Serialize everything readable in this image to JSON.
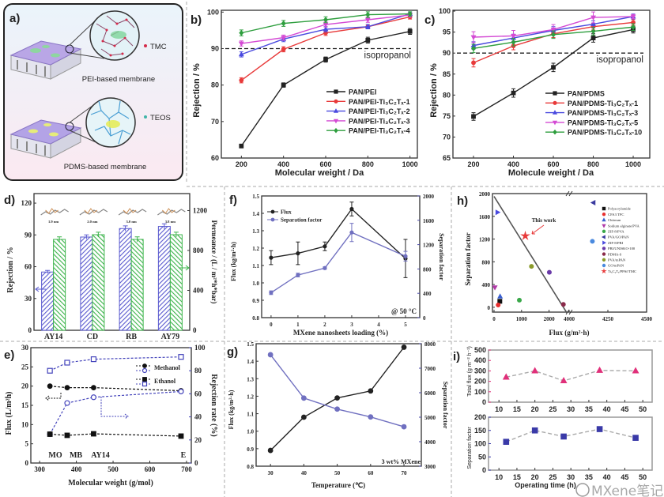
{
  "panel_a": {
    "panel_label": "a)",
    "tmc_label": "TMC",
    "pei_caption": "PEI-based membrane",
    "teos_label": "TEOS",
    "pdms_caption": "PDMS-based membrane",
    "colors": {
      "tmc": "#d42a4a",
      "teos": "#3fb5a8",
      "membrane": "#b9a6e6"
    }
  },
  "watermark": "MXene笔记",
  "chart_data": [
    {
      "panel_label": "b)",
      "type": "line",
      "xlabel": "Molecular  weight / Da",
      "ylabel": "Rejection / %",
      "xlim": [
        105,
        1035
      ],
      "ylim": [
        60,
        100.5
      ],
      "xticks": [
        "200",
        "400",
        "600",
        "800",
        "1000"
      ],
      "yticks": [
        "60",
        "70",
        "80",
        "90",
        "100"
      ],
      "reference_line": {
        "y": 90,
        "label": "isopropanol",
        "style": "dashed"
      },
      "legend_position": "bottom-right",
      "x": [
        200,
        400,
        600,
        800,
        1000
      ],
      "series": [
        {
          "name": "PAN/PEI",
          "color": "#222222",
          "marker": "square",
          "values": [
            63.3,
            80.0,
            87.0,
            92.3,
            94.7
          ],
          "error": [
            0.5,
            0.6,
            0.7,
            0.8,
            0.8
          ]
        },
        {
          "name": "PAN/PEI-Ti₃C₂Tₓ-1",
          "color": "#e83a3a",
          "marker": "circle",
          "values": [
            81.3,
            89.8,
            94.3,
            96.0,
            98.7
          ],
          "error": [
            0.7,
            0.7,
            0.7,
            0.6,
            0.6
          ]
        },
        {
          "name": "PAN/PEI-Ti₃C₂Tₓ-2",
          "color": "#4a4adf",
          "marker": "triangle-up",
          "values": [
            88.4,
            92.6,
            95.3,
            96.0,
            99.5
          ],
          "error": [
            0.7,
            0.7,
            0.7,
            0.6,
            0.5
          ]
        },
        {
          "name": "PAN/PEI-Ti₃C₂Tₓ-3",
          "color": "#d44ad4",
          "marker": "triangle-down",
          "values": [
            91.4,
            93.0,
            96.6,
            97.9,
            99.2
          ],
          "error": [
            0.7,
            0.7,
            0.7,
            0.7,
            0.6
          ]
        },
        {
          "name": "PAN/PEI-Ti₃C₂Tₓ-4",
          "color": "#2e9e3e",
          "marker": "diamond",
          "values": [
            94.3,
            96.9,
            97.9,
            99.3,
            99.5
          ],
          "error": [
            0.8,
            0.8,
            0.8,
            0.8,
            0.6
          ]
        }
      ]
    },
    {
      "panel_label": "c)",
      "type": "line",
      "xlabel": "Molecule weight / Da",
      "ylabel": "Rejection / %",
      "xlim": [
        97,
        1083
      ],
      "ylim": [
        65,
        100.2
      ],
      "xticks": [
        "200",
        "400",
        "600",
        "800",
        "1000"
      ],
      "yticks": [
        "65",
        "70",
        "75",
        "80",
        "85",
        "90",
        "95",
        "100"
      ],
      "reference_line": {
        "y": 90,
        "label": "isopropanol",
        "style": "dashed"
      },
      "legend_position": "bottom-right",
      "x": [
        200,
        400,
        600,
        800,
        1000
      ],
      "series": [
        {
          "name": "PAN/PDMS",
          "color": "#222222",
          "marker": "square",
          "values": [
            74.9,
            80.5,
            86.6,
            93.6,
            95.6
          ],
          "error": [
            0.9,
            1.0,
            1.0,
            1.0,
            0.8
          ]
        },
        {
          "name": "PAN/PDMS-Ti₃C₂Tₓ-1",
          "color": "#e83a3a",
          "marker": "circle",
          "values": [
            87.7,
            91.7,
            94.6,
            96.3,
            97.3
          ],
          "error": [
            1.0,
            0.9,
            0.9,
            0.8,
            0.7
          ]
        },
        {
          "name": "PAN/PDMS-Ti₃C₂Tₓ-3",
          "color": "#4a4adf",
          "marker": "triangle-up",
          "values": [
            91.8,
            93.6,
            95.4,
            96.9,
            98.7
          ],
          "error": [
            0.9,
            0.9,
            0.9,
            0.8,
            0.6
          ]
        },
        {
          "name": "PAN/PDMS-Ti₃C₂Tₓ-5",
          "color": "#d44ad4",
          "marker": "triangle-down",
          "values": [
            93.8,
            94.1,
            95.6,
            98.5,
            98.7
          ],
          "error": [
            1.3,
            1.3,
            1.2,
            1.3,
            0.5
          ]
        },
        {
          "name": "PAN/PDMS-Ti₃C₂Tₓ-10",
          "color": "#2e9e3e",
          "marker": "diamond",
          "values": [
            91.1,
            92.6,
            94.4,
            95.2,
            96.2
          ],
          "error": [
            1.0,
            0.9,
            0.9,
            0.9,
            0.8
          ]
        }
      ]
    },
    {
      "panel_label": "d)",
      "type": "bar",
      "ylabel": "Rejection / %",
      "ylabel_right": "Permeance / (L / m²*h*bar)",
      "ylim": [
        0,
        129
      ],
      "ylim_right": [
        0,
        1370
      ],
      "yticks": [
        "0",
        "30",
        "60",
        "90",
        "120"
      ],
      "yticks_right": [
        "0",
        "400",
        "800",
        "1200"
      ],
      "categories": [
        "AY14",
        "CD",
        "RB",
        "AY79"
      ],
      "molecule_sizes": [
        "1.9 nm",
        "2.0 nm",
        "3.0 nm",
        "3.8 nm"
      ],
      "series": [
        {
          "axis": "left",
          "color": "#5a5acf",
          "pattern": "hatched",
          "values": [
            55,
            88,
            96,
            98
          ],
          "error": [
            1.5,
            2,
            2.5,
            2.5
          ]
        },
        {
          "axis": "right",
          "color": "#3cb44b",
          "pattern": "hatched",
          "values": [
            911,
            958,
            911,
            958
          ],
          "error": [
            25,
            25,
            25,
            25
          ]
        }
      ]
    },
    {
      "panel_label": "e)",
      "type": "line",
      "xlabel": "Molecular weight (g/mol)",
      "ylabel": "Flux (L/m²h)",
      "ylabel_right": "Rejection rate (%)",
      "xlim": [
        276,
        713
      ],
      "ylim": [
        0,
        30
      ],
      "ylim_right": [
        0,
        100
      ],
      "xticks": [
        "300",
        "400",
        "500",
        "600",
        "700"
      ],
      "yticks": [
        "0",
        "5",
        "10",
        "15",
        "20",
        "25",
        "30"
      ],
      "yticks_right": [
        "0",
        "20",
        "40",
        "60",
        "80",
        "100"
      ],
      "point_labels": [
        "MO",
        "MB",
        "AY14",
        "E"
      ],
      "x": [
        328,
        375,
        447,
        685
      ],
      "legend_position": "top-right",
      "series": [
        {
          "name": "Methanol",
          "axis": "left",
          "color": "#111111",
          "marker": "circle",
          "open": false,
          "values": [
            20.0,
            19.6,
            19.6,
            18.8
          ]
        },
        {
          "axis": "right",
          "color": "#4444bb",
          "marker": "circle",
          "open": true,
          "values": [
            25,
            52,
            57,
            62
          ]
        },
        {
          "name": "Ethanol",
          "axis": "left",
          "color": "#111111",
          "marker": "square",
          "open": false,
          "values": [
            7.5,
            7.2,
            7.6,
            7.0
          ]
        },
        {
          "axis": "right",
          "color": "#4444bb",
          "marker": "square",
          "open": true,
          "values": [
            80,
            87,
            90,
            92
          ]
        }
      ]
    },
    {
      "panel_label": "f)",
      "type": "line",
      "xlabel": "MXene nanosheets loading (%)",
      "ylabel": "Flux (kg/m²·h)",
      "ylabel_right": "Separation factor",
      "xlim": [
        -0.35,
        5.53
      ],
      "ylim": [
        0.8,
        1.5
      ],
      "ylim_right": [
        0,
        2000
      ],
      "xticks": [
        "0",
        "1",
        "2",
        "3",
        "4",
        "5"
      ],
      "yticks": [
        "0.8",
        "0.9",
        "1.0",
        "1.1",
        "1.2",
        "1.3",
        "1.4",
        "1.5"
      ],
      "yticks_right": [
        "0",
        "400",
        "800",
        "1200",
        "1600",
        "2000"
      ],
      "annotation": "@ 50 °C",
      "legend_position": "top-left",
      "x": [
        0,
        1,
        2,
        3,
        5
      ],
      "series": [
        {
          "name": "Flux",
          "axis": "left",
          "color": "#222222",
          "marker": "circle",
          "values": [
            1.145,
            1.17,
            1.21,
            1.425,
            1.14
          ],
          "error": [
            0.04,
            0.065,
            0.025,
            0.04,
            0.11
          ]
        },
        {
          "name": "Separation factor",
          "axis": "right",
          "color": "#7070c0",
          "marker": "circle",
          "values": [
            410,
            700,
            815,
            1400,
            1010
          ],
          "error": [
            30,
            30,
            20,
            150,
            80
          ]
        }
      ]
    },
    {
      "panel_label": "g)",
      "type": "line",
      "xlabel": "Temperature (℃)",
      "ylabel": "Flux (kg/m²·h)",
      "ylabel_right": "Separation factor",
      "xlim": [
        25.7,
        75.2
      ],
      "ylim": [
        0.8,
        1.5
      ],
      "ylim_right": [
        3000,
        8000
      ],
      "xticks": [
        "30",
        "40",
        "50",
        "60",
        "70"
      ],
      "yticks": [
        "0.8",
        "0.9",
        "1.0",
        "1.1",
        "1.2",
        "1.3",
        "1.4",
        "1.5"
      ],
      "yticks_right": [
        "3000",
        "4000",
        "5000",
        "6000",
        "7000",
        "8000"
      ],
      "annotation": "3 wt% MXene",
      "x": [
        30,
        40,
        50,
        60,
        70
      ],
      "series": [
        {
          "axis": "left",
          "color": "#222222",
          "marker": "circle",
          "values": [
            0.89,
            1.08,
            1.19,
            1.23,
            1.48
          ]
        },
        {
          "axis": "right",
          "color": "#7070c0",
          "marker": "circle",
          "values": [
            7550,
            5780,
            5330,
            5010,
            4610
          ]
        }
      ]
    },
    {
      "panel_label": "h)",
      "type": "scatter",
      "xlabel": "Flux (g/m²·h)",
      "ylabel": "Separation factor",
      "x_axis_break": [
        2750,
        4000
      ],
      "xlim": [
        -57,
        4500
      ],
      "ylim": [
        -85,
        2000
      ],
      "xticks": [
        "0",
        "1000",
        "2000",
        "4000",
        "4250",
        "4500"
      ],
      "yticks": [
        "0",
        "400",
        "800",
        "1200",
        "1600",
        "2000"
      ],
      "annotation": "This work",
      "legend_position": "right",
      "trend_line": [
        [
          0,
          1950
        ],
        [
          2650,
          -100
        ]
      ],
      "series": [
        {
          "name": "Polyacrylamide",
          "color": "#111111",
          "marker": "square",
          "x": 210,
          "y": 105
        },
        {
          "name": "CFA3 TFC",
          "color": "#e83030",
          "marker": "circle",
          "x": 150,
          "y": 40
        },
        {
          "name": "Chitosan",
          "color": "#3a5fcf",
          "marker": "triangle-up",
          "x": 220,
          "y": 190
        },
        {
          "name": "Sodium alginate/PVA",
          "color": "#b03aa8",
          "marker": "triangle-down",
          "x": 30,
          "y": 350
        },
        {
          "name": "ZIF-8/PVA",
          "color": "#3aa84a",
          "marker": "circle",
          "x": 920,
          "y": 125
        },
        {
          "name": "PVA/GO/PAN",
          "color": "#3a3a9f",
          "marker": "triangle-left",
          "x": 4157,
          "y": 1840
        },
        {
          "name": "ZIF-8/PBI",
          "color": "#4a4adf",
          "marker": "triangle-right",
          "x": 125,
          "y": 1670
        },
        {
          "name": "PBI/UNISKO-100",
          "color": "#6a3aa8",
          "marker": "circle",
          "x": 2010,
          "y": 615
        },
        {
          "name": "PDMA-S",
          "color": "#8a2a4a",
          "marker": "circle",
          "x": 2520,
          "y": 50
        },
        {
          "name": "PVA/mPAN",
          "color": "#8a9a2a",
          "marker": "circle",
          "x": 1360,
          "y": 720
        },
        {
          "name": "GO/mPAN",
          "color": "#4a8adf",
          "marker": "circle",
          "x": 4150,
          "y": 1160
        },
        {
          "name": "Ti₃C₂Tₓ/PPSf/TMC",
          "color": "#e83a3a",
          "marker": "star",
          "x": 1135,
          "y": 1255
        }
      ]
    },
    {
      "panel_label": "i)",
      "type": "line",
      "xlabel": "Operating time (h)",
      "xlim": [
        7.1,
        52.6
      ],
      "xticks": [
        "10",
        "15",
        "20",
        "25",
        "30",
        "35",
        "40",
        "45",
        "50"
      ],
      "x": [
        12,
        20,
        28,
        38,
        48
      ],
      "subplots": [
        {
          "ylabel": "Total flux (g m⁻² h⁻¹)",
          "ylim": [
            0,
            500
          ],
          "yticks": [
            "0",
            "100",
            "200",
            "300",
            "400",
            "500"
          ],
          "color": "#e0307a",
          "marker": "triangle-up",
          "values": [
            240,
            300,
            205,
            305,
            300
          ]
        },
        {
          "ylabel": "Separation factor",
          "ylim": [
            0,
            200
          ],
          "yticks": [
            "0",
            "50",
            "100",
            "150",
            "200"
          ],
          "color": "#3a3aa8",
          "marker": "square",
          "values": [
            107,
            150,
            127,
            155,
            122
          ]
        }
      ]
    }
  ]
}
